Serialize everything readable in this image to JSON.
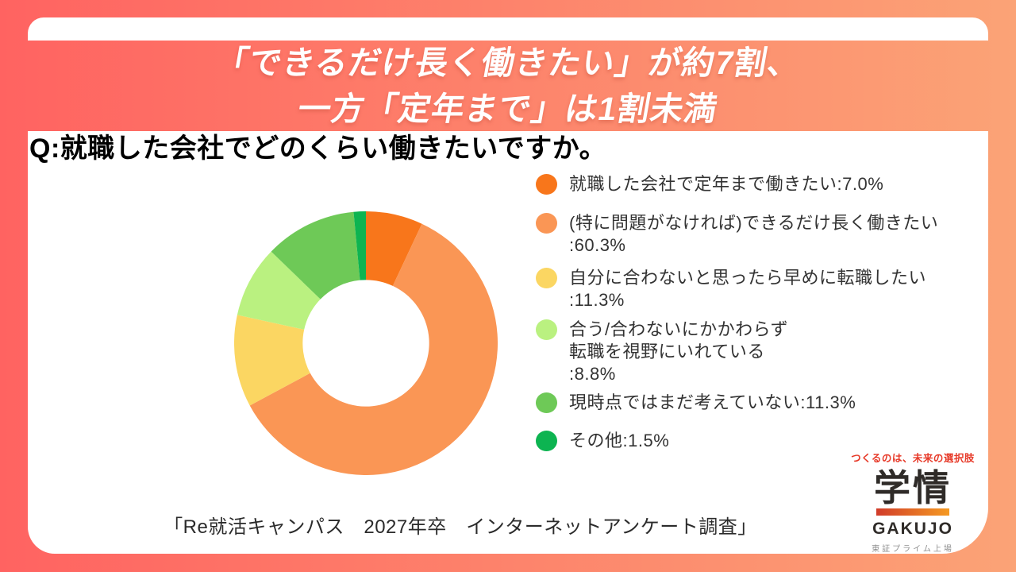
{
  "header": {
    "line1": "「できるだけ長く働きたい」が約7割、",
    "line2": "一方「定年まで」は1割未満"
  },
  "question": "Q:就職した会社でどのくらい働きたいですか。",
  "citation": "「Re就活キャンパス　2027年卒　インターネットアンケート調査」",
  "chart_data": {
    "type": "pie",
    "subtype": "donut",
    "title": "就職した会社でどのくらい働きたいですか。",
    "categories": [
      "就職した会社で定年まで働きたい",
      "(特に問題がなければ)できるだけ長く働きたい",
      "自分に合わないと思ったら早めに転職したい",
      "合う/合わないにかかわらず転職を視野にいれている",
      "現時点ではまだ考えていない",
      "その他"
    ],
    "values": [
      7.0,
      60.3,
      11.3,
      8.8,
      11.3,
      1.5
    ],
    "unit": "%",
    "colors": [
      "#f8761b",
      "#fa9655",
      "#fbd662",
      "#baf180",
      "#6ec957",
      "#0db451"
    ],
    "start_angle_deg": 0,
    "direction": "clockwise",
    "inner_radius_ratio": 0.48,
    "legend_position": "right"
  },
  "legend": {
    "items": [
      {
        "lines": [
          "就職した会社で定年まで働きたい:7.0%"
        ]
      },
      {
        "lines": [
          "(特に問題がなければ)できるだけ長く働きたい",
          ":60.3%"
        ]
      },
      {
        "lines": [
          "自分に合わないと思ったら早めに転職したい",
          ":11.3%"
        ]
      },
      {
        "lines": [
          "合う/合わないにかかわらず",
          "転職を視野にいれている",
          ":8.8%"
        ]
      },
      {
        "lines": [
          "現時点ではまだ考えていない:11.3%"
        ]
      },
      {
        "lines": [
          "その他:1.5%"
        ]
      }
    ]
  },
  "logo": {
    "tagline": "つくるのは、未来の選択肢",
    "name_kanji": "学情",
    "name_latin": "GAKUJO",
    "listing_note": "東証プライム上場"
  },
  "colors": {
    "bg_gradient_start": "#ff6361",
    "bg_gradient_end": "#fba376",
    "title_text": "#ffffff",
    "logo_bar_start": "#d13c2a",
    "logo_bar_end": "#f59a22",
    "tagline_red": "#e73928"
  }
}
